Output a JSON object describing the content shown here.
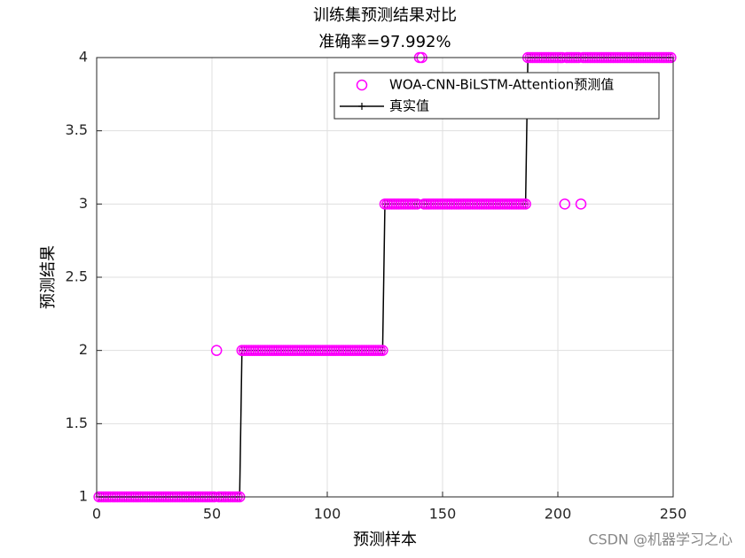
{
  "chart_data": {
    "type": "line",
    "title": "训练集预测结果对比",
    "subtitle": "准确率=97.992%",
    "xlabel": "预测样本",
    "ylabel": "预测结果",
    "watermark": "CSDN @机器学习之心",
    "xlim": [
      0,
      250
    ],
    "xticks": [
      0,
      50,
      100,
      150,
      200,
      250
    ],
    "ylim": [
      1,
      4
    ],
    "yticks": [
      1,
      1.5,
      2,
      2.5,
      3,
      3.5,
      4
    ],
    "grid": true,
    "legend": "northeast",
    "x": [
      1,
      2,
      3,
      4,
      5,
      6,
      7,
      8,
      9,
      10,
      11,
      12,
      13,
      14,
      15,
      16,
      17,
      18,
      19,
      20,
      21,
      22,
      23,
      24,
      25,
      26,
      27,
      28,
      29,
      30,
      31,
      32,
      33,
      34,
      35,
      36,
      37,
      38,
      39,
      40,
      41,
      42,
      43,
      44,
      45,
      46,
      47,
      48,
      49,
      50,
      51,
      52,
      53,
      54,
      55,
      56,
      57,
      58,
      59,
      60,
      61,
      62,
      63,
      64,
      65,
      66,
      67,
      68,
      69,
      70,
      71,
      72,
      73,
      74,
      75,
      76,
      77,
      78,
      79,
      80,
      81,
      82,
      83,
      84,
      85,
      86,
      87,
      88,
      89,
      90,
      91,
      92,
      93,
      94,
      95,
      96,
      97,
      98,
      99,
      100,
      101,
      102,
      103,
      104,
      105,
      106,
      107,
      108,
      109,
      110,
      111,
      112,
      113,
      114,
      115,
      116,
      117,
      118,
      119,
      120,
      121,
      122,
      123,
      124,
      125,
      126,
      127,
      128,
      129,
      130,
      131,
      132,
      133,
      134,
      135,
      136,
      137,
      138,
      139,
      140,
      141,
      142,
      143,
      144,
      145,
      146,
      147,
      148,
      149,
      150,
      151,
      152,
      153,
      154,
      155,
      156,
      157,
      158,
      159,
      160,
      161,
      162,
      163,
      164,
      165,
      166,
      167,
      168,
      169,
      170,
      171,
      172,
      173,
      174,
      175,
      176,
      177,
      178,
      179,
      180,
      181,
      182,
      183,
      184,
      185,
      186,
      187,
      188,
      189,
      190,
      191,
      192,
      193,
      194,
      195,
      196,
      197,
      198,
      199,
      200,
      201,
      202,
      203,
      204,
      205,
      206,
      207,
      208,
      209,
      210,
      211,
      212,
      213,
      214,
      215,
      216,
      217,
      218,
      219,
      220,
      221,
      222,
      223,
      224,
      225,
      226,
      227,
      228,
      229,
      230,
      231,
      232,
      233,
      234,
      235,
      236,
      237,
      238,
      239,
      240,
      241,
      242,
      243,
      244,
      245,
      246,
      247,
      248,
      249
    ],
    "series": [
      {
        "name": "WOA-CNN-BiLSTM-Attention预测值",
        "color": "#ff00ff",
        "marker": "circle",
        "values": [
          1,
          1,
          1,
          1,
          1,
          1,
          1,
          1,
          1,
          1,
          1,
          1,
          1,
          1,
          1,
          1,
          1,
          1,
          1,
          1,
          1,
          1,
          1,
          1,
          1,
          1,
          1,
          1,
          1,
          1,
          1,
          1,
          1,
          1,
          1,
          1,
          1,
          1,
          1,
          1,
          1,
          1,
          1,
          1,
          1,
          1,
          1,
          1,
          1,
          1,
          1,
          2,
          1,
          1,
          1,
          1,
          1,
          1,
          1,
          1,
          1,
          1,
          2,
          2,
          2,
          2,
          2,
          2,
          2,
          2,
          2,
          2,
          2,
          2,
          2,
          2,
          2,
          2,
          2,
          2,
          2,
          2,
          2,
          2,
          2,
          2,
          2,
          2,
          2,
          2,
          2,
          2,
          2,
          2,
          2,
          2,
          2,
          2,
          2,
          2,
          2,
          2,
          2,
          2,
          2,
          2,
          2,
          2,
          2,
          2,
          2,
          2,
          2,
          2,
          2,
          2,
          2,
          2,
          2,
          2,
          2,
          2,
          2,
          2,
          3,
          3,
          3,
          3,
          3,
          3,
          3,
          3,
          3,
          3,
          3,
          3,
          3,
          3,
          3,
          4,
          4,
          3,
          3,
          3,
          3,
          3,
          3,
          3,
          3,
          3,
          3,
          3,
          3,
          3,
          3,
          3,
          3,
          3,
          3,
          3,
          3,
          3,
          3,
          3,
          3,
          3,
          3,
          3,
          3,
          3,
          3,
          3,
          3,
          3,
          3,
          3,
          3,
          3,
          3,
          3,
          3,
          3,
          3,
          3,
          3,
          3,
          4,
          4,
          4,
          4,
          4,
          4,
          4,
          4,
          4,
          4,
          4,
          4,
          4,
          4,
          4,
          4,
          3,
          4,
          4,
          4,
          4,
          4,
          4,
          3,
          4,
          4,
          4,
          4,
          4,
          4,
          4,
          4,
          4,
          4,
          4,
          4,
          4,
          4,
          4,
          4,
          4,
          4,
          4,
          4,
          4,
          4,
          4,
          4,
          4,
          4,
          4,
          4,
          4,
          4,
          4,
          4,
          4,
          4,
          4,
          4,
          4,
          4,
          4
        ]
      },
      {
        "name": "真实值",
        "color": "#000000",
        "marker": "plus",
        "values": [
          1,
          1,
          1,
          1,
          1,
          1,
          1,
          1,
          1,
          1,
          1,
          1,
          1,
          1,
          1,
          1,
          1,
          1,
          1,
          1,
          1,
          1,
          1,
          1,
          1,
          1,
          1,
          1,
          1,
          1,
          1,
          1,
          1,
          1,
          1,
          1,
          1,
          1,
          1,
          1,
          1,
          1,
          1,
          1,
          1,
          1,
          1,
          1,
          1,
          1,
          1,
          1,
          1,
          1,
          1,
          1,
          1,
          1,
          1,
          1,
          1,
          1,
          2,
          2,
          2,
          2,
          2,
          2,
          2,
          2,
          2,
          2,
          2,
          2,
          2,
          2,
          2,
          2,
          2,
          2,
          2,
          2,
          2,
          2,
          2,
          2,
          2,
          2,
          2,
          2,
          2,
          2,
          2,
          2,
          2,
          2,
          2,
          2,
          2,
          2,
          2,
          2,
          2,
          2,
          2,
          2,
          2,
          2,
          2,
          2,
          2,
          2,
          2,
          2,
          2,
          2,
          2,
          2,
          2,
          2,
          2,
          2,
          2,
          2,
          3,
          3,
          3,
          3,
          3,
          3,
          3,
          3,
          3,
          3,
          3,
          3,
          3,
          3,
          3,
          3,
          3,
          3,
          3,
          3,
          3,
          3,
          3,
          3,
          3,
          3,
          3,
          3,
          3,
          3,
          3,
          3,
          3,
          3,
          3,
          3,
          3,
          3,
          3,
          3,
          3,
          3,
          3,
          3,
          3,
          3,
          3,
          3,
          3,
          3,
          3,
          3,
          3,
          3,
          3,
          3,
          3,
          3,
          3,
          3,
          3,
          3,
          4,
          4,
          4,
          4,
          4,
          4,
          4,
          4,
          4,
          4,
          4,
          4,
          4,
          4,
          4,
          4,
          4,
          4,
          4,
          4,
          4,
          4,
          4,
          4,
          4,
          4,
          4,
          4,
          4,
          4,
          4,
          4,
          4,
          4,
          4,
          4,
          4,
          4,
          4,
          4,
          4,
          4,
          4,
          4,
          4,
          4,
          4,
          4,
          4,
          4,
          4,
          4,
          4,
          4,
          4,
          4,
          4,
          4,
          4,
          4,
          4,
          4,
          4
        ]
      }
    ]
  }
}
